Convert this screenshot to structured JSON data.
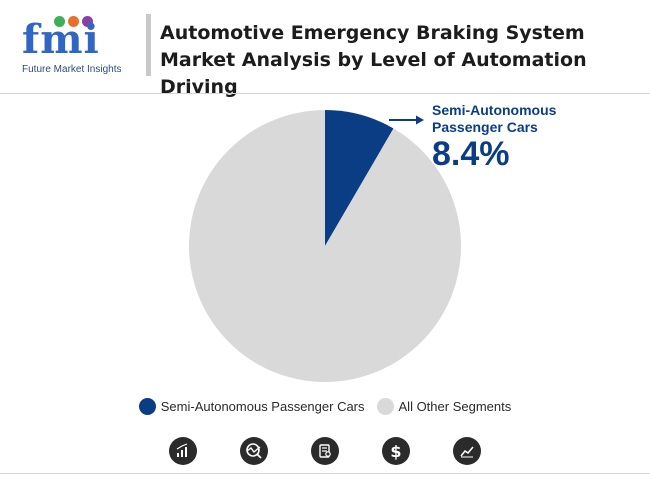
{
  "header": {
    "logo_text": "fmi",
    "logo_subtitle": "Future Market Insights",
    "title": "Automotive Emergency Braking System Market Analysis by Level of Automation Driving"
  },
  "colors": {
    "primary_segment": "#0b3d84",
    "other_segment": "#d9d9d9",
    "logo_blue": "#2f67c2"
  },
  "callout": {
    "label_line1": "Semi-Autonomous",
    "label_line2": "Passenger Cars",
    "value": "8.4%"
  },
  "chart_data": {
    "type": "pie",
    "title": "Automotive Emergency Braking System Market Analysis by Level of Automation Driving",
    "categories": [
      "Semi-Autonomous Passenger Cars",
      "All Other Segments"
    ],
    "values": [
      8.4,
      91.6
    ],
    "colors": [
      "#0b3d84",
      "#d9d9d9"
    ],
    "legend_position": "bottom"
  },
  "legend": {
    "items": [
      {
        "label": "Semi-Autonomous Passenger Cars",
        "color": "#0b3d84"
      },
      {
        "label": "All Other Segments",
        "color": "#d9d9d9"
      }
    ]
  },
  "footer_icons": [
    "growth-chart-icon",
    "trend-analysis-icon",
    "report-document-icon",
    "dollar-icon",
    "line-chart-icon"
  ]
}
